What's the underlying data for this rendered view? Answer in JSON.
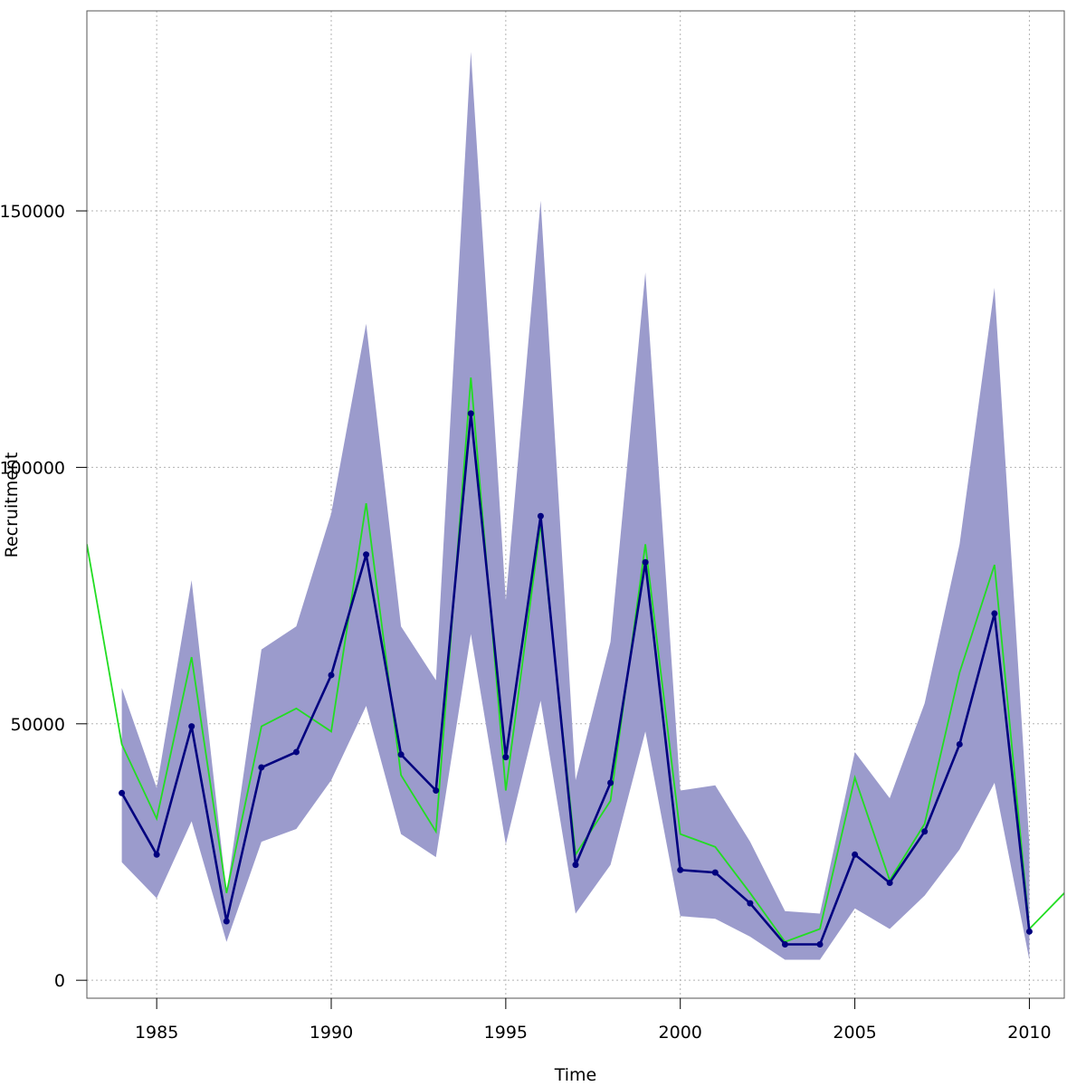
{
  "chart_data": {
    "type": "line",
    "title": "",
    "xlabel": "Time",
    "ylabel": "Recruitment",
    "xlim": [
      1983,
      2011
    ],
    "ylim": [
      -3500,
      189000
    ],
    "grid": true,
    "x_ticks": [
      1985,
      1990,
      1995,
      2000,
      2005,
      2010
    ],
    "x_tick_labels": [
      "1985",
      "1990",
      "1995",
      "2000",
      "2005",
      "2010"
    ],
    "y_ticks": [
      0,
      50000,
      100000,
      150000
    ],
    "y_tick_labels": [
      "0",
      "50000",
      "100000",
      "150000"
    ],
    "colors": {
      "band": "#9b9bcc",
      "estimate": "#00007f",
      "observed": "#22dd22",
      "grid": "#b3b3b3",
      "frame": "#555555"
    },
    "band": {
      "x": [
        1984,
        1985,
        1986,
        1987,
        1988,
        1989,
        1990,
        1991,
        1992,
        1993,
        1994,
        1995,
        1996,
        1997,
        1998,
        1999,
        2000,
        2001,
        2002,
        2003,
        2004,
        2005,
        2006,
        2007,
        2008,
        2009,
        2010
      ],
      "lower": [
        23000,
        16000,
        31000,
        7500,
        27000,
        29500,
        39000,
        53500,
        28500,
        24000,
        67500,
        26500,
        54500,
        13000,
        22500,
        48500,
        12500,
        12000,
        8500,
        4000,
        4000,
        14000,
        10000,
        16500,
        25500,
        38500,
        4000
      ],
      "upper": [
        57000,
        37500,
        78000,
        17000,
        64500,
        69000,
        91000,
        128000,
        69000,
        58500,
        181000,
        74000,
        152000,
        39000,
        66000,
        138000,
        37000,
        38000,
        27000,
        13500,
        13000,
        44500,
        35500,
        54000,
        85000,
        135000,
        26500
      ]
    },
    "series": [
      {
        "x": [
          1983,
          1984,
          1985,
          1986,
          1987,
          1988,
          1989,
          1990,
          1991,
          1992,
          1993,
          1994,
          1995,
          1996,
          1997,
          1998,
          1999,
          2000,
          2001,
          2002,
          2003,
          2004,
          2005,
          2006,
          2007,
          2008,
          2009,
          2010,
          2011
        ],
        "values": [
          85000,
          46000,
          31500,
          63000,
          17000,
          49500,
          53000,
          48500,
          93000,
          40000,
          29000,
          117500,
          37000,
          89000,
          24500,
          35000,
          85000,
          28500,
          26000,
          17000,
          7500,
          10000,
          39500,
          19500,
          30500,
          60000,
          81000,
          10000,
          17000
        ]
      },
      {
        "x": [
          1984,
          1985,
          1986,
          1987,
          1988,
          1989,
          1990,
          1991,
          1992,
          1993,
          1994,
          1995,
          1996,
          1997,
          1998,
          1999,
          2000,
          2001,
          2002,
          2003,
          2004,
          2005,
          2006,
          2007,
          2008,
          2009,
          2010
        ],
        "values": [
          36500,
          24500,
          49500,
          11500,
          41500,
          44500,
          59500,
          83000,
          44000,
          37000,
          110500,
          43500,
          90500,
          22500,
          38500,
          81500,
          21500,
          21000,
          15000,
          7000,
          7000,
          24500,
          19000,
          29000,
          46000,
          71500,
          9500
        ]
      }
    ]
  }
}
